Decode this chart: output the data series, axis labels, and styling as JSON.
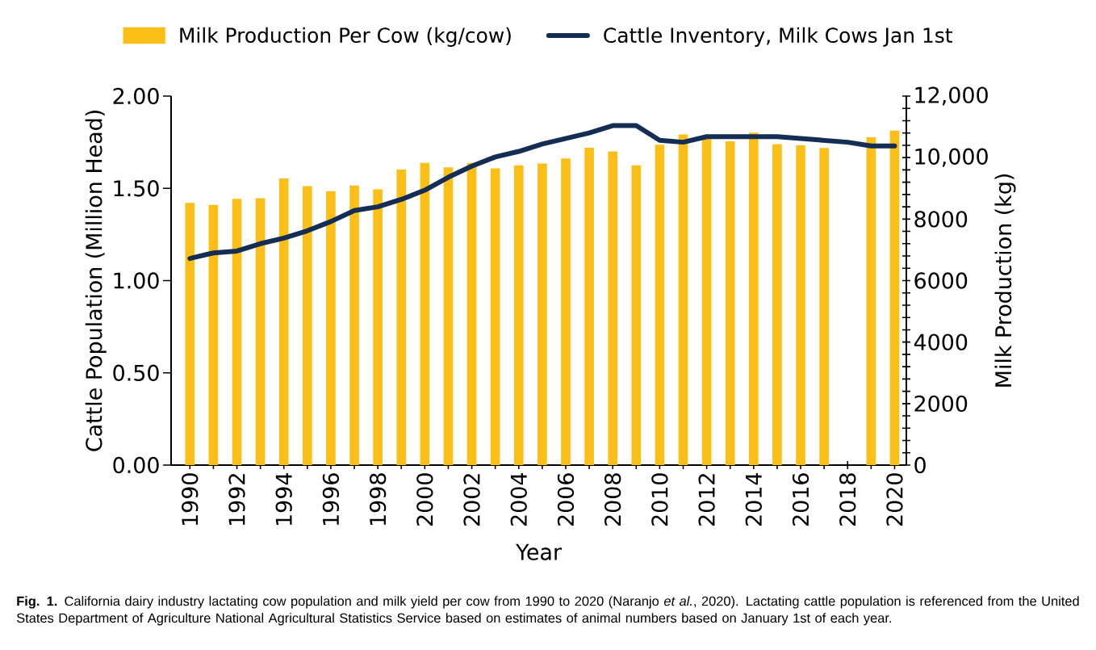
{
  "chart_data": {
    "type": "bar",
    "x": [
      1990,
      1991,
      1992,
      1993,
      1994,
      1995,
      1996,
      1997,
      1998,
      1999,
      2000,
      2001,
      2002,
      2003,
      2004,
      2005,
      2006,
      2007,
      2008,
      2009,
      2010,
      2011,
      2012,
      2013,
      2014,
      2015,
      2016,
      2017,
      2018,
      2019,
      2020
    ],
    "series": [
      {
        "name": "Milk Production Per Cow (kg/cow)",
        "axis": "y2",
        "color": "#fbbf18",
        "values": [
          8530,
          8460,
          8660,
          8680,
          9320,
          9070,
          8910,
          9090,
          8970,
          9610,
          9830,
          9680,
          9830,
          9650,
          9750,
          9810,
          9970,
          10320,
          10200,
          9750,
          10420,
          10750,
          10680,
          10530,
          10810,
          10440,
          10400,
          10310,
          null,
          10660,
          10880
        ]
      },
      {
        "name": "Cattle Inventory, Milk Cows Jan 1st",
        "type": "line",
        "color": "#142d54",
        "values": [
          1.12,
          1.15,
          1.16,
          1.2,
          1.23,
          1.27,
          1.32,
          1.38,
          1.4,
          1.44,
          1.49,
          1.56,
          1.62,
          1.67,
          1.7,
          1.74,
          1.77,
          1.8,
          1.84,
          1.84,
          1.76,
          1.75,
          1.78,
          1.78,
          1.78,
          1.78,
          1.77,
          1.76,
          1.75,
          1.73,
          1.73
        ]
      }
    ],
    "xlabel": "Year",
    "ylabel": "Cattle Population (Million Head)",
    "y2label": "Milk Production (kg)",
    "xlim": [
      1989.2,
      2020.5
    ],
    "xticks": [
      1990,
      {
        "value": 1991,
        "label": null
      },
      1992,
      {
        "value": 1993,
        "label": null
      },
      1994,
      {
        "value": 1995,
        "label": null
      },
      1996,
      {
        "value": 1997,
        "label": null
      },
      1998,
      {
        "value": 1999,
        "label": null
      },
      2000,
      {
        "value": 2001,
        "label": null
      },
      2002,
      {
        "value": 2003,
        "label": null
      },
      2004,
      {
        "value": 2005,
        "label": null
      },
      2006,
      {
        "value": 2007,
        "label": null
      },
      2008,
      {
        "value": 2009,
        "label": null
      },
      2010,
      {
        "value": 2011,
        "label": null
      },
      2012,
      {
        "value": 2013,
        "label": null
      },
      2014,
      {
        "value": 2015,
        "label": null
      },
      2016,
      {
        "value": 2017,
        "label": null
      },
      2018,
      {
        "value": 2019,
        "label": null
      },
      2020
    ],
    "ylim": [
      0,
      2
    ],
    "yticks": [
      {
        "value": 0,
        "label": "0.00"
      },
      {
        "value": 0.5,
        "label": "0.50"
      },
      {
        "value": 1,
        "label": "1.00"
      },
      {
        "value": 1.5,
        "label": "1.50"
      },
      {
        "value": 2,
        "label": "2.00"
      }
    ],
    "y2lim": [
      0,
      12000
    ],
    "y2ticks": [
      0,
      {
        "value": 400,
        "label": null
      },
      {
        "value": 800,
        "label": null
      },
      {
        "value": 1200,
        "label": null
      },
      {
        "value": 1600,
        "label": null
      },
      2000,
      {
        "value": 2400,
        "label": null
      },
      {
        "value": 2800,
        "label": null
      },
      {
        "value": 3200,
        "label": null
      },
      {
        "value": 3600,
        "label": null
      },
      4000,
      {
        "value": 4400,
        "label": null
      },
      {
        "value": 4800,
        "label": null
      },
      {
        "value": 5200,
        "label": null
      },
      {
        "value": 5600,
        "label": null
      },
      6000,
      {
        "value": 6400,
        "label": null
      },
      {
        "value": 6800,
        "label": null
      },
      {
        "value": 7200,
        "label": null
      },
      {
        "value": 7600,
        "label": null
      },
      8000,
      {
        "value": 8400,
        "label": null
      },
      {
        "value": 8800,
        "label": null
      },
      {
        "value": 9200,
        "label": null
      },
      {
        "value": 9600,
        "label": null
      },
      {
        "value": 10000,
        "label": "10,000"
      },
      {
        "value": 10400,
        "label": null
      },
      {
        "value": 10800,
        "label": null
      },
      {
        "value": 11200,
        "label": null
      },
      {
        "value": 11600,
        "label": null
      },
      {
        "value": 12000,
        "label": "12,000"
      }
    ],
    "legend": "top",
    "annotations": [
      "**Fig. 1.** California dairy industry lactating cow population and milk yield per cow from 1990 to 2020 (Naranjo *et al.*, 2020). Lactating cattle population is referenced from the United States Department of Agriculture National Agricultural Statistics Service based on estimates of animal numbers based on January 1st of each year."
    ]
  }
}
